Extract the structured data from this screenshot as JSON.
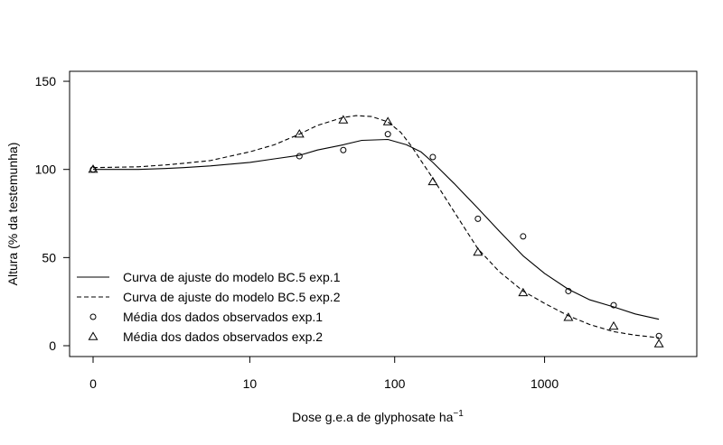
{
  "chart_data": {
    "type": "scatter",
    "title": "",
    "xlabel": "Dose g.e.a de glyphosate ha",
    "xlabel_superscript": "−1",
    "ylabel": "Altura (% da testemunha)",
    "x_scale": "log10 with zero dose plotted at the origin",
    "xlim": [
      0,
      6000
    ],
    "ylim": [
      0,
      155
    ],
    "x_ticks": [
      0,
      10,
      100,
      1000
    ],
    "x_tick_labels": [
      "0",
      "10",
      "100",
      "1000"
    ],
    "y_ticks": [
      0,
      50,
      100,
      150
    ],
    "y_tick_labels": [
      "0",
      "50",
      "100",
      "150"
    ],
    "grid": false,
    "legend_position": "bottom-left",
    "legend": [
      {
        "label": "Curva de ajuste do modelo BC.5 exp.1",
        "symbol": "solid-line"
      },
      {
        "label": "Curva de ajuste do modelo BC.5 exp.2",
        "symbol": "dashed-line"
      },
      {
        "label": "Média dos dados observados exp.1",
        "symbol": "circle"
      },
      {
        "label": "Média dos dados observados exp.2",
        "symbol": "triangle"
      }
    ],
    "series": [
      {
        "name": "Média dos dados observados exp.1",
        "kind": "points",
        "marker": "circle",
        "x": [
          0,
          22.5,
          45,
          90,
          180,
          360,
          720,
          1440,
          2880,
          5760
        ],
        "y": [
          100,
          107.5,
          111,
          120,
          107,
          72,
          62,
          31,
          23,
          5.5
        ]
      },
      {
        "name": "Média dos dados observados exp.2",
        "kind": "points",
        "marker": "triangle",
        "x": [
          0,
          22.5,
          45,
          90,
          180,
          360,
          720,
          1440,
          2880,
          5760
        ],
        "y": [
          100,
          120,
          128,
          127,
          93,
          53,
          30,
          16,
          11,
          1
        ]
      },
      {
        "name": "Curva de ajuste do modelo BC.5 exp.1",
        "kind": "line",
        "dash": "solid",
        "x": [
          0,
          1,
          2,
          3,
          5,
          10,
          15,
          22.5,
          30,
          45,
          60,
          90,
          120,
          150,
          180,
          250,
          360,
          500,
          720,
          1000,
          1440,
          2000,
          2880,
          4000,
          5760
        ],
        "y": [
          100,
          100,
          100.5,
          101,
          102,
          104,
          106,
          108,
          111,
          114,
          116.5,
          117,
          114,
          110,
          104,
          92,
          78,
          65,
          51,
          41,
          32,
          26,
          22,
          18,
          15
        ]
      },
      {
        "name": "Curva de ajuste do modelo BC.5 exp.2",
        "kind": "line",
        "dash": "dashed",
        "x": [
          0,
          1,
          2,
          3,
          5,
          10,
          15,
          22.5,
          30,
          45,
          55,
          70,
          90,
          110,
          130,
          150,
          180,
          250,
          360,
          500,
          720,
          1000,
          1440,
          2000,
          2880,
          4000,
          5760
        ],
        "y": [
          101,
          101.5,
          102.5,
          103.5,
          105,
          110,
          114,
          120,
          125,
          129.5,
          130.5,
          130,
          127,
          121,
          113,
          105,
          95,
          76,
          55,
          42,
          31,
          24,
          17,
          12,
          8,
          6,
          4.5
        ]
      }
    ]
  }
}
